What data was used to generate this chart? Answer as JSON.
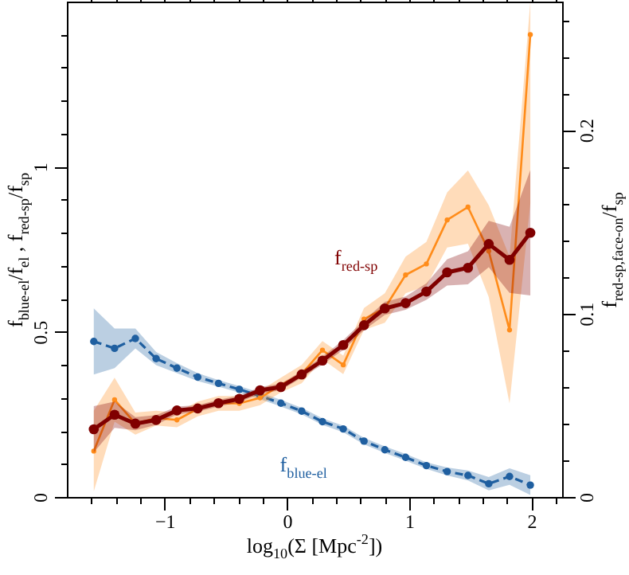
{
  "chart_data": {
    "type": "line",
    "xlabel": "log$_{10}$(Σ [Mpc$^{-2}$])",
    "ylabel": "f$_{blue-el}$/f$_{el}$ , f$_{red-sp}$/f$_{sp}$",
    "y2label": "f$_{red-sp,face-on}$/f$_{sp}$",
    "x": [
      -1.58,
      -1.41,
      -1.24,
      -1.07,
      -0.9,
      -0.73,
      -0.56,
      -0.39,
      -0.22,
      -0.05,
      0.12,
      0.29,
      0.46,
      0.63,
      0.8,
      0.97,
      1.14,
      1.31,
      1.48,
      1.65,
      1.82,
      1.99
    ],
    "series": [
      {
        "name": "f$_{blue-el}$",
        "color": "#1f5fa0",
        "line_style": "dashed",
        "values": [
          0.471,
          0.45,
          0.48,
          0.419,
          0.39,
          0.363,
          0.344,
          0.326,
          0.306,
          0.284,
          0.26,
          0.228,
          0.206,
          0.169,
          0.143,
          0.12,
          0.095,
          0.077,
          0.065,
          0.04,
          0.062,
          0.036
        ],
        "lower": [
          0.371,
          0.39,
          0.45,
          0.399,
          0.375,
          0.351,
          0.334,
          0.316,
          0.296,
          0.274,
          0.25,
          0.218,
          0.196,
          0.159,
          0.133,
          0.11,
          0.085,
          0.065,
          0.05,
          0.02,
          0.037,
          0.006
        ],
        "upper": [
          0.571,
          0.51,
          0.51,
          0.439,
          0.405,
          0.375,
          0.354,
          0.336,
          0.316,
          0.294,
          0.27,
          0.238,
          0.216,
          0.179,
          0.153,
          0.13,
          0.105,
          0.089,
          0.08,
          0.06,
          0.087,
          0.066
        ]
      },
      {
        "color": "#ff8c1a",
        "axis": "y2",
        "values": [
          0.025,
          0.053,
          0.04,
          0.043,
          0.042,
          0.048,
          0.051,
          0.051,
          0.054,
          0.061,
          0.067,
          0.08,
          0.072,
          0.097,
          0.103,
          0.121,
          0.127,
          0.151,
          0.158,
          0.134,
          0.091,
          0.252
        ],
        "lower": [
          0.003,
          0.041,
          0.034,
          0.039,
          0.038,
          0.044,
          0.047,
          0.047,
          0.05,
          0.057,
          0.062,
          0.075,
          0.067,
          0.091,
          0.095,
          0.111,
          0.115,
          0.136,
          0.138,
          0.109,
          0.051,
          0.16
        ],
        "upper": [
          0.047,
          0.065,
          0.046,
          0.047,
          0.046,
          0.052,
          0.055,
          0.055,
          0.058,
          0.065,
          0.072,
          0.085,
          0.077,
          0.103,
          0.111,
          0.131,
          0.139,
          0.166,
          0.178,
          0.159,
          0.131,
          0.27
        ]
      },
      {
        "name": "f$_{red-sp}$",
        "color": "#800000",
        "values": [
          0.205,
          0.249,
          0.222,
          0.233,
          0.262,
          0.268,
          0.284,
          0.297,
          0.323,
          0.333,
          0.371,
          0.413,
          0.46,
          0.52,
          0.571,
          0.587,
          0.622,
          0.68,
          0.694,
          0.766,
          0.718,
          0.8
        ],
        "lower": [
          0.135,
          0.209,
          0.202,
          0.218,
          0.25,
          0.258,
          0.274,
          0.287,
          0.313,
          0.323,
          0.361,
          0.401,
          0.445,
          0.505,
          0.551,
          0.567,
          0.597,
          0.64,
          0.644,
          0.696,
          0.618,
          0.61
        ],
        "upper": [
          0.275,
          0.289,
          0.242,
          0.248,
          0.274,
          0.278,
          0.294,
          0.307,
          0.333,
          0.343,
          0.381,
          0.425,
          0.475,
          0.535,
          0.591,
          0.607,
          0.647,
          0.72,
          0.744,
          0.836,
          0.818,
          0.99
        ]
      }
    ],
    "xlim": [
      -1.8,
      2.25
    ],
    "xticks": [
      {
        "value": -1.6,
        "label": null
      },
      {
        "value": -1.4,
        "label": null
      },
      {
        "value": -1.2,
        "label": null
      },
      -1,
      {
        "value": -0.8,
        "label": null
      },
      {
        "value": -0.6,
        "label": null
      },
      {
        "value": -0.4,
        "label": null
      },
      {
        "value": -0.2,
        "label": null
      },
      0,
      {
        "value": 0.2,
        "label": null
      },
      {
        "value": 0.4,
        "label": null
      },
      {
        "value": 0.6,
        "label": null
      },
      {
        "value": 0.8,
        "label": null
      },
      1,
      {
        "value": 1.2,
        "label": null
      },
      {
        "value": 1.4,
        "label": null
      },
      {
        "value": 1.6,
        "label": null
      },
      {
        "value": 1.8,
        "label": null
      },
      2,
      {
        "value": 2.2,
        "label": null
      }
    ],
    "ylim": [
      0,
      1.5
    ],
    "yticks": [
      0,
      {
        "value": 0.1,
        "label": null
      },
      {
        "value": 0.2,
        "label": null
      },
      {
        "value": 0.3,
        "label": null
      },
      {
        "value": 0.4,
        "label": null
      },
      0.5,
      {
        "value": 0.6,
        "label": null
      },
      {
        "value": 0.7,
        "label": null
      },
      {
        "value": 0.8,
        "label": null
      },
      {
        "value": 0.9,
        "label": null
      },
      1,
      {
        "value": 1.1,
        "label": null
      },
      {
        "value": 1.2,
        "label": null
      },
      {
        "value": 1.3,
        "label": null
      },
      {
        "value": 1.4,
        "label": null
      }
    ],
    "y2lim": [
      0,
      0.27
    ],
    "y2ticks": [
      0,
      {
        "value": 0.02,
        "label": null
      },
      {
        "value": 0.04,
        "label": null
      },
      {
        "value": 0.06,
        "label": null
      },
      {
        "value": 0.08,
        "label": null
      },
      0.1,
      {
        "value": 0.12,
        "label": null
      },
      {
        "value": 0.14,
        "label": null
      },
      {
        "value": 0.16,
        "label": null
      },
      {
        "value": 0.18,
        "label": null
      },
      0.2,
      {
        "value": 0.22,
        "label": null
      },
      {
        "value": 0.24,
        "label": null
      },
      {
        "value": 0.26,
        "label": null
      }
    ],
    "marker": "circle",
    "grid": false
  }
}
